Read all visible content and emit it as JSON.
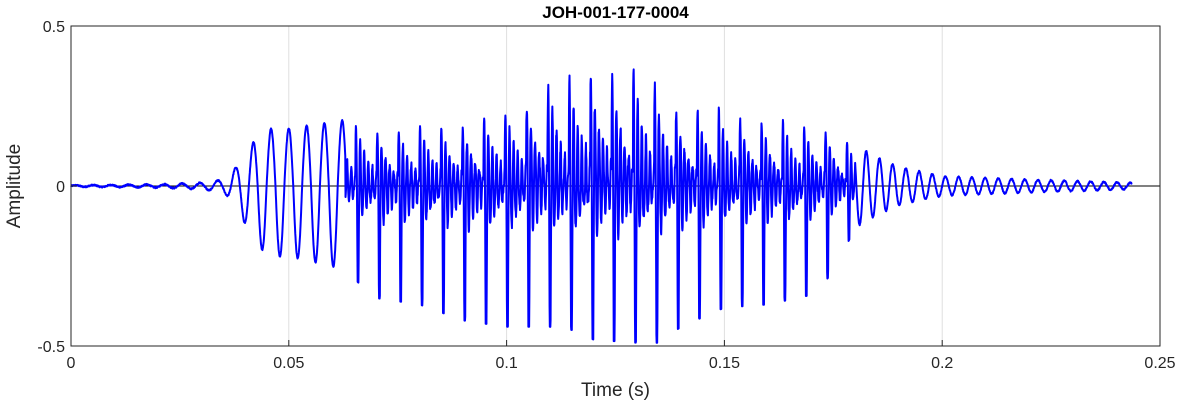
{
  "chart_data": {
    "type": "line",
    "title": "JOH-001-177-0004",
    "xlabel": "Time (s)",
    "ylabel": "Amplitude",
    "xlim": [
      0,
      0.25
    ],
    "ylim": [
      -0.5,
      0.5
    ],
    "grid": true,
    "x_ticks": [
      0,
      0.05,
      0.1,
      0.15,
      0.2,
      0.25
    ],
    "x_tick_labels": [
      "0",
      "0.05",
      "0.1",
      "0.15",
      "0.2",
      "0.25"
    ],
    "y_ticks": [
      -0.5,
      0,
      0.5
    ],
    "y_tick_labels": [
      "-0.5",
      "0",
      "0.5"
    ],
    "series": [
      {
        "color": "#0000FF",
        "t_start": 0.0,
        "t_end": 0.2435,
        "envelope_points": [
          {
            "t": 0.0,
            "max": 0.002,
            "min": -0.002
          },
          {
            "t": 0.02,
            "max": 0.005,
            "min": -0.005
          },
          {
            "t": 0.03,
            "max": 0.01,
            "min": -0.01
          },
          {
            "t": 0.035,
            "max": 0.02,
            "min": -0.02
          },
          {
            "t": 0.038,
            "max": 0.06,
            "min": -0.06
          },
          {
            "t": 0.042,
            "max": 0.14,
            "min": -0.18
          },
          {
            "t": 0.046,
            "max": 0.18,
            "min": -0.22
          },
          {
            "t": 0.05,
            "max": 0.18,
            "min": -0.22
          },
          {
            "t": 0.06,
            "max": 0.2,
            "min": -0.25
          },
          {
            "t": 0.065,
            "max": 0.21,
            "min": -0.29
          },
          {
            "t": 0.07,
            "max": 0.2,
            "min": -0.35
          },
          {
            "t": 0.08,
            "max": 0.2,
            "min": -0.37
          },
          {
            "t": 0.09,
            "max": 0.22,
            "min": -0.42
          },
          {
            "t": 0.1,
            "max": 0.26,
            "min": -0.44
          },
          {
            "t": 0.11,
            "max": 0.36,
            "min": -0.44
          },
          {
            "t": 0.115,
            "max": 0.37,
            "min": -0.45
          },
          {
            "t": 0.12,
            "max": 0.41,
            "min": -0.48
          },
          {
            "t": 0.13,
            "max": 0.4,
            "min": -0.49
          },
          {
            "t": 0.135,
            "max": 0.35,
            "min": -0.49
          },
          {
            "t": 0.14,
            "max": 0.27,
            "min": -0.44
          },
          {
            "t": 0.15,
            "max": 0.26,
            "min": -0.38
          },
          {
            "t": 0.16,
            "max": 0.23,
            "min": -0.37
          },
          {
            "t": 0.17,
            "max": 0.21,
            "min": -0.34
          },
          {
            "t": 0.175,
            "max": 0.2,
            "min": -0.27
          },
          {
            "t": 0.18,
            "max": 0.13,
            "min": -0.13
          },
          {
            "t": 0.185,
            "max": 0.09,
            "min": -0.09
          },
          {
            "t": 0.19,
            "max": 0.06,
            "min": -0.06
          },
          {
            "t": 0.2,
            "max": 0.03,
            "min": -0.03
          },
          {
            "t": 0.22,
            "max": 0.02,
            "min": -0.02
          },
          {
            "t": 0.2435,
            "max": 0.01,
            "min": -0.01
          }
        ],
        "pulse_period_s": 0.0049,
        "pulse_phase_s": 0.0653
      }
    ]
  }
}
